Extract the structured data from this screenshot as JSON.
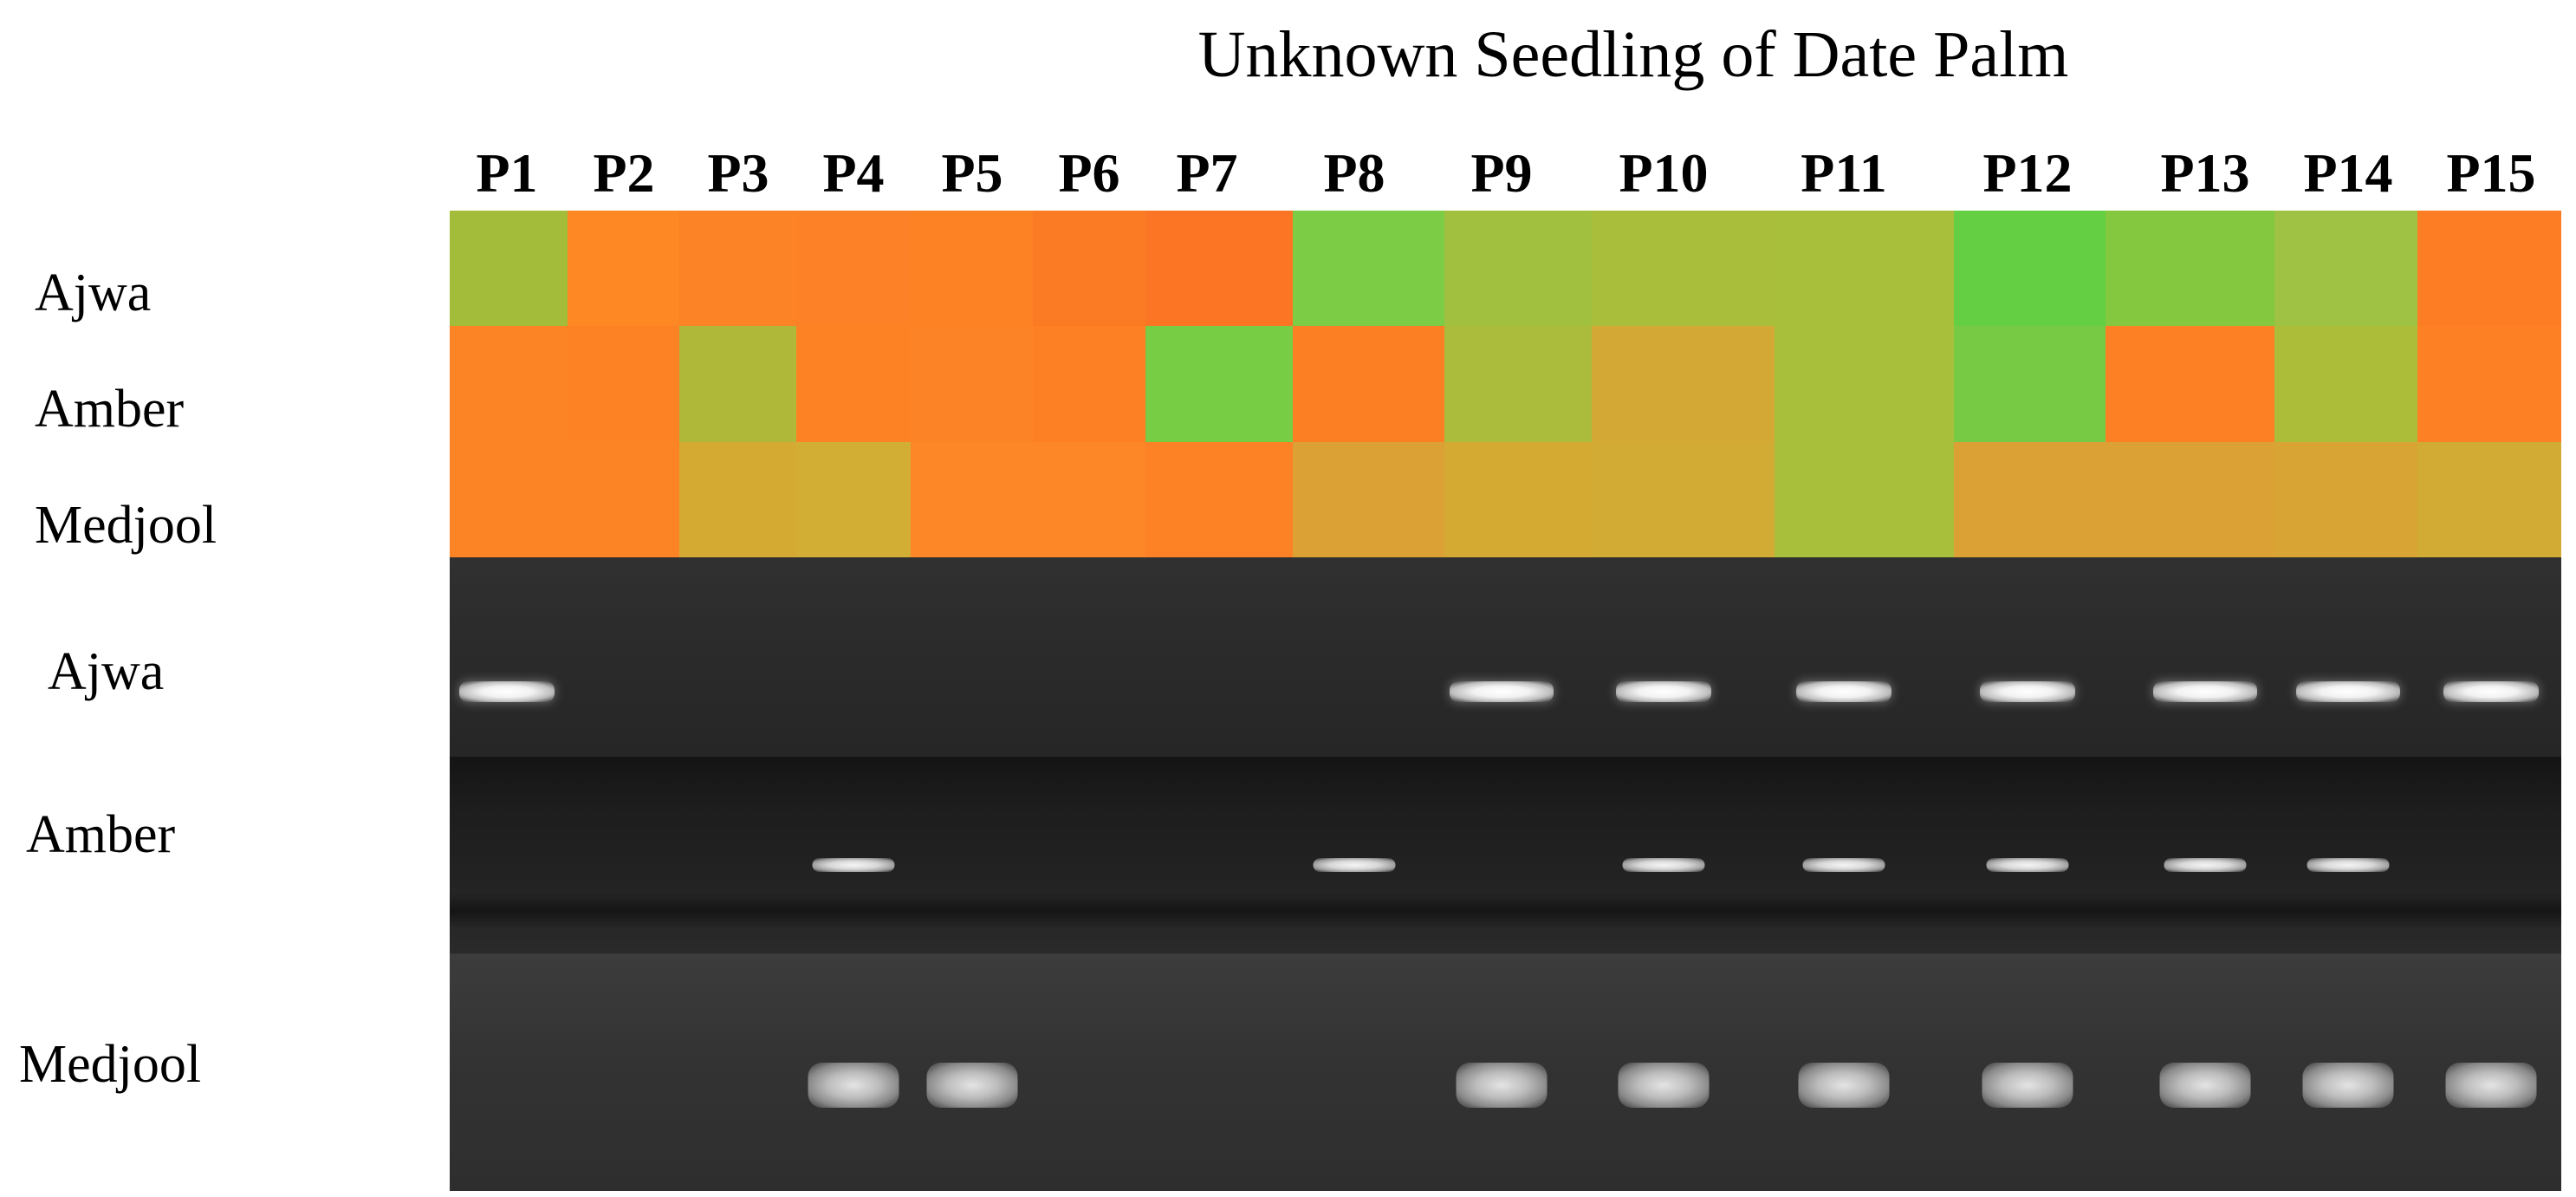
{
  "title": "Unknown Seedling of Date Palm",
  "samples": [
    "P1",
    "P2",
    "P3",
    "P4",
    "P5",
    "P6",
    "P7",
    "P8",
    "P9",
    "P10",
    "P11",
    "P12",
    "P13",
    "P14",
    "P15"
  ],
  "heatmap": {
    "rows": [
      {
        "label": "Ajwa",
        "colors": [
          "#a3bc3a",
          "#fd8824",
          "#fc8326",
          "#fd8227",
          "#fd8224",
          "#fa7b24",
          "#fb7524",
          "#7ccc45",
          "#a2c040",
          "#a9bf3c",
          "#a8bf3c",
          "#64cf42",
          "#84c840",
          "#9fc144",
          "#fd7d25"
        ]
      },
      {
        "label": "Amber",
        "colors": [
          "#fd8424",
          "#fd8224",
          "#b0b83a",
          "#fd8224",
          "#fc8426",
          "#fd8024",
          "#77cd43",
          "#fd7f24",
          "#abbc3c",
          "#d4a834",
          "#a8bf3c",
          "#76ca44",
          "#fd8124",
          "#acbd3a",
          "#fd8024"
        ]
      },
      {
        "label": "Medjool",
        "colors": [
          "#fd8424",
          "#fd8424",
          "#d5aa33",
          "#d3ae34",
          "#fd8626",
          "#fd8626",
          "#fd8226",
          "#dca134",
          "#d5aa33",
          "#d2ab34",
          "#a8bf3c",
          "#dca134",
          "#dca134",
          "#d8a534",
          "#d2ab34"
        ]
      }
    ]
  },
  "gel": {
    "rows": [
      {
        "label": "Ajwa",
        "bands": [
          "strong",
          "none",
          "none",
          "none",
          "none",
          "none",
          "none",
          "none",
          "strong",
          "strong",
          "strong",
          "strong",
          "strong",
          "strong",
          "strong"
        ]
      },
      {
        "label": "Amber",
        "bands": [
          "none",
          "none",
          "none",
          "medium",
          "none",
          "none",
          "none",
          "medium",
          "none",
          "medium",
          "medium",
          "medium",
          "medium",
          "medium",
          "none"
        ]
      },
      {
        "label": "Medjool",
        "bands": [
          "none",
          "none",
          "none",
          "smear",
          "smear",
          "none",
          "none",
          "none",
          "smear",
          "smear",
          "smear",
          "smear",
          "smear",
          "smear",
          "smear"
        ]
      }
    ]
  }
}
